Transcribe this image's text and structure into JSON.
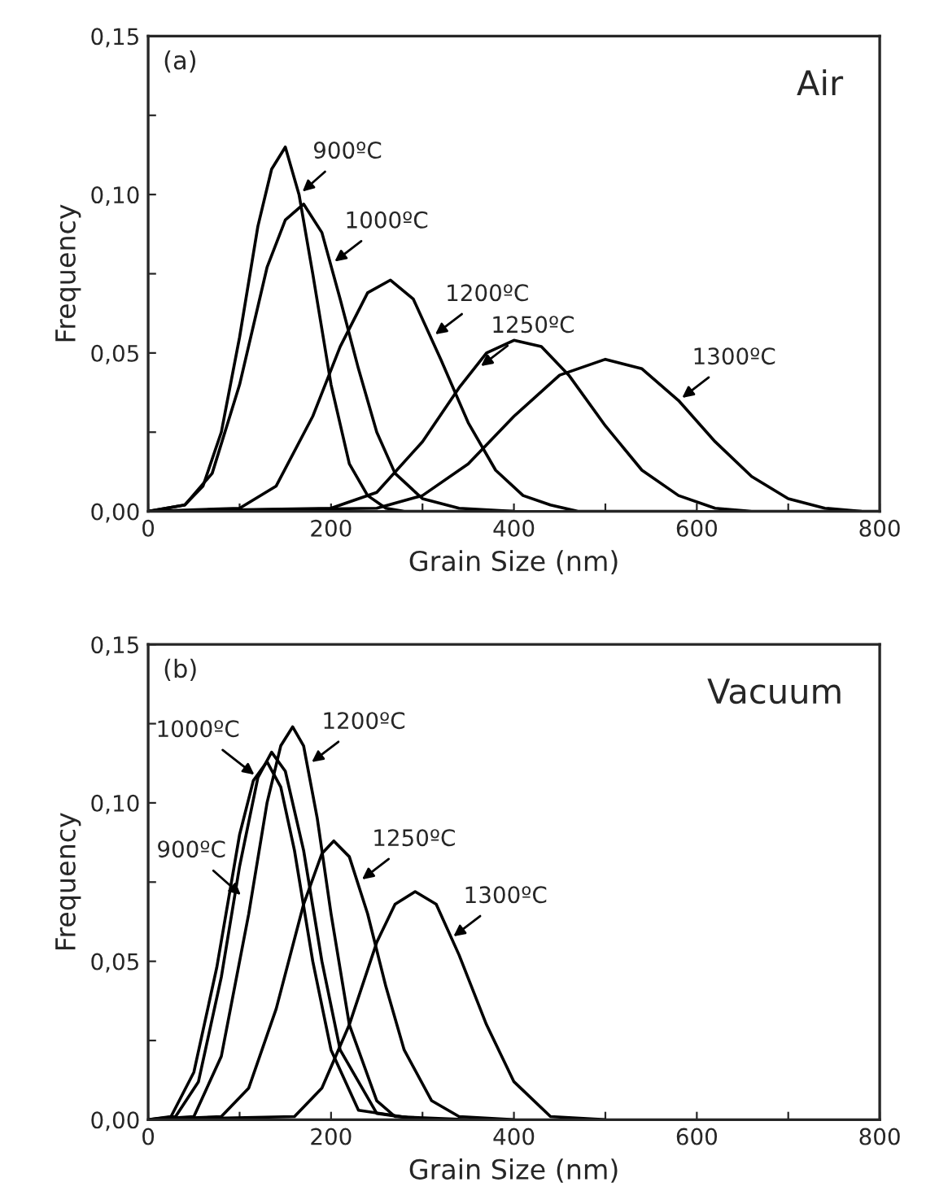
{
  "chart_data": [
    {
      "type": "line",
      "xlabel": "Grain Size (nm)",
      "ylabel": "Frequency",
      "xlim": [
        0,
        800
      ],
      "ylim": [
        0,
        0.15
      ],
      "xticks": [
        0,
        {
          "value": 100,
          "label": null
        },
        200,
        {
          "value": 300,
          "label": null
        },
        400,
        {
          "value": 500,
          "label": null
        },
        600,
        {
          "value": 700,
          "label": null
        },
        800
      ],
      "yticks": [
        {
          "value": 0,
          "label": "0,00"
        },
        {
          "value": 0.025,
          "label": null
        },
        {
          "value": 0.05,
          "label": "0,05"
        },
        {
          "value": 0.075,
          "label": null
        },
        {
          "value": 0.1,
          "label": "0,10"
        },
        {
          "value": 0.125,
          "label": null
        },
        {
          "value": 0.15,
          "label": "0,15"
        }
      ],
      "grid": false,
      "marker": "none",
      "line_style": "solid",
      "annotations": [
        "(a)",
        "Air",
        {
          "text": "900ºC",
          "x": 165,
          "y": 0.1
        },
        {
          "text": "1000ºC",
          "x": 200,
          "y": 0.078
        },
        {
          "text": "1200ºC",
          "x": 310,
          "y": 0.055
        },
        {
          "text": "1250ºC",
          "x": 360,
          "y": 0.045
        },
        {
          "text": "1300ºC",
          "x": 580,
          "y": 0.035
        }
      ],
      "series": [
        {
          "color": "#000000",
          "x": [
            0,
            40,
            60,
            80,
            100,
            120,
            135,
            150,
            165,
            180,
            200,
            220,
            240,
            260,
            280,
            400
          ],
          "values": [
            0,
            0.002,
            0.008,
            0.025,
            0.055,
            0.09,
            0.108,
            0.115,
            0.1,
            0.075,
            0.04,
            0.015,
            0.005,
            0.001,
            0,
            0
          ]
        },
        {
          "color": "#000000",
          "x": [
            0,
            40,
            70,
            100,
            130,
            150,
            170,
            190,
            210,
            230,
            250,
            270,
            300,
            340,
            400
          ],
          "values": [
            0,
            0.002,
            0.012,
            0.04,
            0.077,
            0.092,
            0.097,
            0.088,
            0.067,
            0.045,
            0.025,
            0.012,
            0.004,
            0.001,
            0
          ]
        },
        {
          "color": "#000000",
          "x": [
            0,
            100,
            140,
            180,
            210,
            240,
            265,
            290,
            320,
            350,
            380,
            410,
            440,
            470,
            600
          ],
          "values": [
            0,
            0.001,
            0.008,
            0.03,
            0.052,
            0.069,
            0.073,
            0.067,
            0.048,
            0.028,
            0.013,
            0.005,
            0.002,
            0,
            0
          ]
        },
        {
          "color": "#000000",
          "x": [
            0,
            200,
            250,
            300,
            340,
            370,
            400,
            430,
            460,
            500,
            540,
            580,
            620,
            660,
            800
          ],
          "values": [
            0,
            0.001,
            0.006,
            0.022,
            0.039,
            0.05,
            0.054,
            0.052,
            0.043,
            0.027,
            0.013,
            0.005,
            0.001,
            0,
            0
          ]
        },
        {
          "color": "#000000",
          "x": [
            0,
            250,
            300,
            350,
            400,
            450,
            500,
            540,
            580,
            620,
            660,
            700,
            740,
            780
          ],
          "values": [
            0,
            0.001,
            0.005,
            0.015,
            0.03,
            0.043,
            0.048,
            0.045,
            0.035,
            0.022,
            0.011,
            0.004,
            0.001,
            0
          ]
        }
      ]
    },
    {
      "type": "line",
      "xlabel": "Grain Size (nm)",
      "ylabel": "Frequency",
      "xlim": [
        0,
        800
      ],
      "ylim": [
        0,
        0.15
      ],
      "xticks": [
        0,
        {
          "value": 100,
          "label": null
        },
        200,
        {
          "value": 300,
          "label": null
        },
        400,
        {
          "value": 500,
          "label": null
        },
        600,
        {
          "value": 700,
          "label": null
        },
        800
      ],
      "yticks": [
        {
          "value": 0,
          "label": "0,00"
        },
        {
          "value": 0.025,
          "label": null
        },
        {
          "value": 0.05,
          "label": "0,05"
        },
        {
          "value": 0.075,
          "label": null
        },
        {
          "value": 0.1,
          "label": "0,10"
        },
        {
          "value": 0.125,
          "label": null
        },
        {
          "value": 0.15,
          "label": "0,15"
        }
      ],
      "grid": false,
      "marker": "none",
      "line_style": "solid",
      "annotations": [
        "(b)",
        "Vacuum",
        {
          "text": "900ºC",
          "x": 105,
          "y": 0.07
        },
        {
          "text": "1000ºC",
          "x": 120,
          "y": 0.108
        },
        {
          "text": "1200ºC",
          "x": 175,
          "y": 0.112
        },
        {
          "text": "1250ºC",
          "x": 230,
          "y": 0.075
        },
        {
          "text": "1300ºC",
          "x": 330,
          "y": 0.057
        }
      ],
      "series": [
        {
          "color": "#000000",
          "x": [
            0,
            25,
            50,
            75,
            100,
            115,
            130,
            145,
            160,
            180,
            200,
            230,
            300
          ],
          "values": [
            0,
            0.001,
            0.015,
            0.048,
            0.09,
            0.107,
            0.113,
            0.105,
            0.085,
            0.05,
            0.022,
            0.003,
            0
          ]
        },
        {
          "color": "#000000",
          "x": [
            0,
            30,
            55,
            80,
            100,
            120,
            135,
            150,
            170,
            190,
            210,
            250,
            300
          ],
          "values": [
            0,
            0.001,
            0.012,
            0.045,
            0.08,
            0.108,
            0.116,
            0.11,
            0.085,
            0.05,
            0.022,
            0.002,
            0
          ]
        },
        {
          "color": "#000000",
          "x": [
            0,
            50,
            80,
            110,
            130,
            145,
            158,
            170,
            185,
            200,
            220,
            250,
            270,
            350
          ],
          "values": [
            0,
            0.001,
            0.02,
            0.065,
            0.1,
            0.118,
            0.124,
            0.118,
            0.095,
            0.065,
            0.03,
            0.006,
            0.001,
            0
          ]
        },
        {
          "color": "#000000",
          "x": [
            0,
            80,
            110,
            140,
            170,
            190,
            203,
            220,
            240,
            260,
            280,
            310,
            340,
            400
          ],
          "values": [
            0,
            0.001,
            0.01,
            0.035,
            0.068,
            0.084,
            0.088,
            0.083,
            0.065,
            0.042,
            0.022,
            0.006,
            0.001,
            0
          ]
        },
        {
          "color": "#000000",
          "x": [
            0,
            160,
            190,
            220,
            250,
            270,
            292,
            315,
            340,
            370,
            400,
            440,
            500
          ],
          "values": [
            0,
            0.001,
            0.01,
            0.03,
            0.056,
            0.068,
            0.072,
            0.068,
            0.052,
            0.03,
            0.012,
            0.001,
            0
          ]
        }
      ]
    }
  ]
}
